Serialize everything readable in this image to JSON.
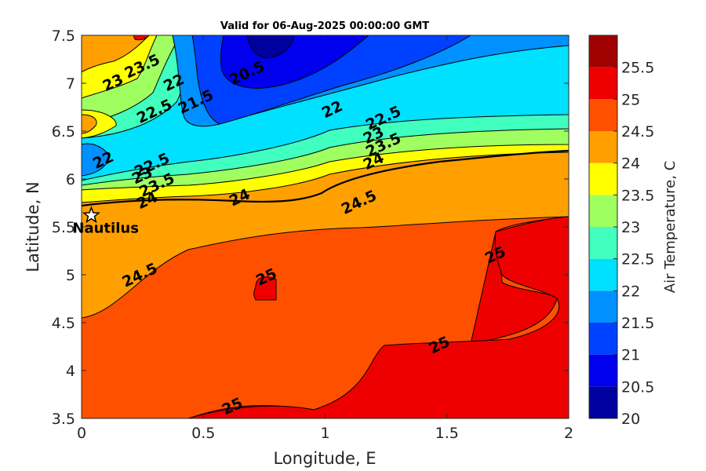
{
  "chart_data": {
    "type": "heatmap",
    "title": "Valid for 06-Aug-2025 00:00:00 GMT",
    "xlabel": "Longitude, E",
    "ylabel": "Latitude, N",
    "colorbar_label": "Air Temperature, C",
    "xlim": [
      0,
      2
    ],
    "ylim": [
      3.5,
      7.5
    ],
    "x_ticks": [
      "0",
      "0.5",
      "1",
      "1.5",
      "2"
    ],
    "y_ticks": [
      "3.5",
      "4",
      "4.5",
      "5",
      "5.5",
      "6",
      "6.5",
      "7",
      "7.5"
    ],
    "colorbar_ticks": [
      "20",
      "20.5",
      "21",
      "21.5",
      "22",
      "22.5",
      "23",
      "23.5",
      "24",
      "24.5",
      "25",
      "25.5"
    ],
    "levels": [
      20,
      20.5,
      21,
      21.5,
      22,
      22.5,
      23,
      23.5,
      24,
      24.5,
      25,
      25.5
    ],
    "colors": [
      "#00009f",
      "#0000ef",
      "#0040ff",
      "#0090ff",
      "#00e0ff",
      "#40ffbf",
      "#a0ff60",
      "#ffff00",
      "#ffa000",
      "#ff5000",
      "#ef0000",
      "#a00000"
    ],
    "contour_labels": [
      {
        "text": "20.5",
        "lon": 0.68,
        "lat": 7.1
      },
      {
        "text": "21.5",
        "lon": 0.47,
        "lat": 6.8
      },
      {
        "text": "22",
        "lon": 1.03,
        "lat": 6.72
      },
      {
        "text": "22",
        "lon": 0.09,
        "lat": 6.19
      },
      {
        "text": "22",
        "lon": 0.38,
        "lat": 7.0
      },
      {
        "text": "22.5",
        "lon": 0.3,
        "lat": 6.7
      },
      {
        "text": "23",
        "lon": 0.13,
        "lat": 7.0
      },
      {
        "text": "23.5",
        "lon": 0.25,
        "lat": 7.17
      },
      {
        "text": "22.5",
        "lon": 1.24,
        "lat": 6.63
      },
      {
        "text": "23",
        "lon": 1.2,
        "lat": 6.45
      },
      {
        "text": "23.5",
        "lon": 1.24,
        "lat": 6.35
      },
      {
        "text": "24",
        "lon": 1.2,
        "lat": 6.18
      },
      {
        "text": "22.5",
        "lon": 0.29,
        "lat": 6.14
      },
      {
        "text": "23",
        "lon": 0.25,
        "lat": 6.03
      },
      {
        "text": "23.5",
        "lon": 0.31,
        "lat": 5.93
      },
      {
        "text": "24",
        "lon": 0.27,
        "lat": 5.77
      },
      {
        "text": "24",
        "lon": 0.65,
        "lat": 5.8
      },
      {
        "text": "24.5",
        "lon": 1.14,
        "lat": 5.75
      },
      {
        "text": "24.5",
        "lon": 0.24,
        "lat": 4.99
      },
      {
        "text": "25",
        "lon": 0.76,
        "lat": 4.97
      },
      {
        "text": "25",
        "lon": 1.7,
        "lat": 5.2
      },
      {
        "text": "25",
        "lon": 1.47,
        "lat": 4.26
      },
      {
        "text": "25",
        "lon": 0.62,
        "lat": 3.62
      }
    ],
    "station": {
      "name": "Nautilus",
      "lon": 0.04,
      "lat": 5.62
    }
  }
}
